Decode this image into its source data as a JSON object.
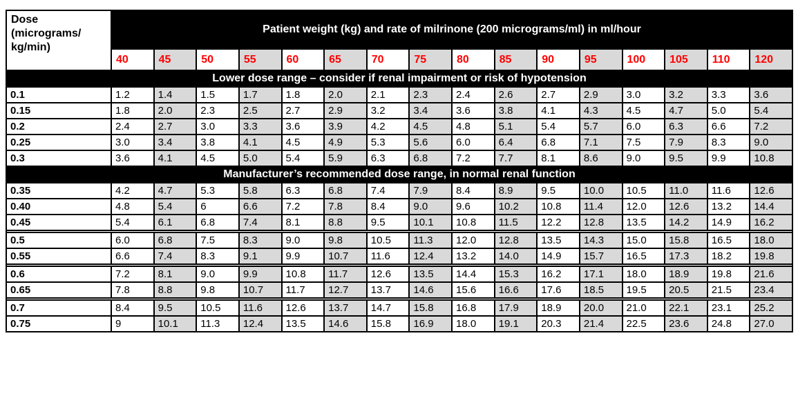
{
  "colors": {
    "banner_bg": "#000000",
    "banner_text": "#ffffff",
    "weight_text": "#ff0000",
    "shaded_column": "#d9d9d9",
    "border": "#000000",
    "page_bg": "#ffffff"
  },
  "table": {
    "corner_header": "Dose\n(micrograms/\nkg/min)",
    "banner": "Patient weight (kg) and rate of milrinone (200 micrograms/ml) in ml/hour",
    "weights": [
      "40",
      "45",
      "50",
      "55",
      "60",
      "65",
      "70",
      "75",
      "80",
      "85",
      "90",
      "95",
      "100",
      "105",
      "110",
      "120"
    ],
    "sections": [
      {
        "title": "Lower dose range – consider if renal impairment or risk of hypotension",
        "rows": [
          {
            "dose": "0.1",
            "gap_before": false,
            "values": [
              "1.2",
              "1.4",
              "1.5",
              "1.7",
              "1.8",
              "2.0",
              "2.1",
              "2.3",
              "2.4",
              "2.6",
              "2.7",
              "2.9",
              "3.0",
              "3.2",
              "3.3",
              "3.6"
            ]
          },
          {
            "dose": "0.15",
            "gap_before": false,
            "values": [
              "1.8",
              "2.0",
              "2.3",
              "2.5",
              "2.7",
              "2.9",
              "3.2",
              "3.4",
              "3.6",
              "3.8",
              "4.1",
              "4.3",
              "4.5",
              "4.7",
              "5.0",
              "5.4"
            ]
          },
          {
            "dose": "0.2",
            "gap_before": false,
            "values": [
              "2.4",
              "2.7",
              "3.0",
              "3.3",
              "3.6",
              "3.9",
              "4.2",
              "4.5",
              "4.8",
              "5.1",
              "5.4",
              "5.7",
              "6.0",
              "6.3",
              "6.6",
              "7.2"
            ]
          },
          {
            "dose": "0.25",
            "gap_before": false,
            "values": [
              "3.0",
              "3.4",
              "3.8",
              "4.1",
              "4.5",
              "4.9",
              "5.3",
              "5.6",
              "6.0",
              "6.4",
              "6.8",
              "7.1",
              "7.5",
              "7.9",
              "8.3",
              "9.0"
            ]
          },
          {
            "dose": "0.3",
            "gap_before": false,
            "values": [
              "3.6",
              "4.1",
              "4.5",
              "5.0",
              "5.4",
              "5.9",
              "6.3",
              "6.8",
              "7.2",
              "7.7",
              "8.1",
              "8.6",
              "9.0",
              "9.5",
              "9.9",
              "10.8"
            ]
          }
        ]
      },
      {
        "title": "Manufacturer’s recommended dose range, in normal renal function",
        "rows": [
          {
            "dose": "0.35",
            "gap_before": false,
            "values": [
              "4.2",
              "4.7",
              "5.3",
              "5.8",
              "6.3",
              "6.8",
              "7.4",
              "7.9",
              "8.4",
              "8.9",
              "9.5",
              "10.0",
              "10.5",
              "11.0",
              "11.6",
              "12.6"
            ]
          },
          {
            "dose": "0.40",
            "gap_before": false,
            "values": [
              "4.8",
              "5.4",
              "6",
              "6.6",
              "7.2",
              "7.8",
              "8.4",
              "9.0",
              "9.6",
              "10.2",
              "10.8",
              "11.4",
              "12.0",
              "12.6",
              "13.2",
              "14.4"
            ]
          },
          {
            "dose": "0.45",
            "gap_before": false,
            "values": [
              "5.4",
              "6.1",
              "6.8",
              "7.4",
              "8.1",
              "8.8",
              "9.5",
              "10.1",
              "10.8",
              "11.5",
              "12.2",
              "12.8",
              "13.5",
              "14.2",
              "14.9",
              "16.2"
            ]
          },
          {
            "dose": "0.5",
            "gap_before": true,
            "values": [
              "6.0",
              "6.8",
              "7.5",
              "8.3",
              "9.0",
              "9.8",
              "10.5",
              "11.3",
              "12.0",
              "12.8",
              "13.5",
              "14.3",
              "15.0",
              "15.8",
              "16.5",
              "18.0"
            ]
          },
          {
            "dose": "0.55",
            "gap_before": false,
            "values": [
              "6.6",
              "7.4",
              "8.3",
              "9.1",
              "9.9",
              "10.7",
              "11.6",
              "12.4",
              "13.2",
              "14.0",
              "14.9",
              "15.7",
              "16.5",
              "17.3",
              "18.2",
              "19.8"
            ]
          },
          {
            "dose": "0.6",
            "gap_before": true,
            "values": [
              "7.2",
              "8.1",
              "9.0",
              "9.9",
              "10.8",
              "11.7",
              "12.6",
              "13.5",
              "14.4",
              "15.3",
              "16.2",
              "17.1",
              "18.0",
              "18.9",
              "19.8",
              "21.6"
            ]
          },
          {
            "dose": "0.65",
            "gap_before": false,
            "values": [
              "7.8",
              "8.8",
              "9.8",
              "10.7",
              "11.7",
              "12.7",
              "13.7",
              "14.6",
              "15.6",
              "16.6",
              "17.6",
              "18.5",
              "19.5",
              "20.5",
              "21.5",
              "23.4"
            ]
          },
          {
            "dose": "0.7",
            "gap_before": true,
            "values": [
              "8.4",
              "9.5",
              "10.5",
              "11.6",
              "12.6",
              "13.7",
              "14.7",
              "15.8",
              "16.8",
              "17.9",
              "18.9",
              "20.0",
              "21.0",
              "22.1",
              "23.1",
              "25.2"
            ]
          },
          {
            "dose": "0.75",
            "gap_before": false,
            "values": [
              "9",
              "10.1",
              "11.3",
              "12.4",
              "13.5",
              "14.6",
              "15.8",
              "16.9",
              "18.0",
              "19.1",
              "20.3",
              "21.4",
              "22.5",
              "23.6",
              "24.8",
              "27.0"
            ]
          }
        ]
      }
    ]
  }
}
